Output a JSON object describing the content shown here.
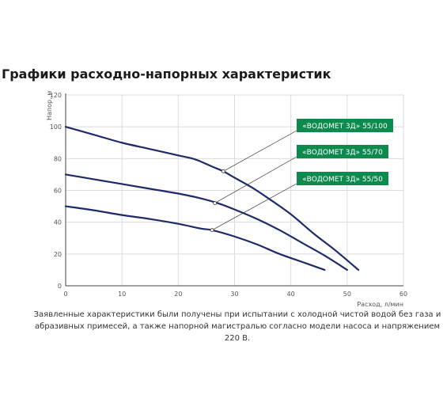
{
  "chart_data": {
    "type": "line",
    "title": "Графики расходно-напорных характеристик",
    "xlabel": "Расход, л/мин",
    "ylabel": "Напор, м",
    "xlim": [
      0,
      60
    ],
    "ylim": [
      0,
      120
    ],
    "xticks": [
      "0",
      "10",
      "20",
      "30",
      "40",
      "50",
      "60"
    ],
    "yticks": [
      "0",
      "20",
      "40",
      "60",
      "80",
      "100",
      "120"
    ],
    "grid": true,
    "line_color": "#1f2a6b",
    "label_color": "#0d8a4e",
    "series": [
      {
        "name": "«ВОДОМЕТ 3Д» 55/100",
        "x": [
          0,
          5,
          10,
          15,
          20,
          23,
          26,
          28,
          30,
          33,
          36,
          40,
          44,
          48,
          52
        ],
        "y": [
          100,
          95,
          90,
          86,
          82,
          79.5,
          75,
          72,
          68,
          62,
          55,
          45,
          33,
          22,
          10
        ],
        "marker": {
          "x": 28,
          "y": 72
        }
      },
      {
        "name": "«ВОДОМЕТ 3Д» 55/70",
        "x": [
          0,
          5,
          10,
          15,
          20,
          24,
          27,
          30,
          34,
          38,
          42,
          46,
          50
        ],
        "y": [
          70,
          67,
          64,
          61,
          58,
          55,
          52,
          48,
          42,
          35,
          27,
          19,
          10
        ],
        "marker": {
          "x": 26.5,
          "y": 52
        }
      },
      {
        "name": "«ВОДОМЕТ 3Д» 55/50",
        "x": [
          0,
          5,
          10,
          15,
          20,
          24,
          26,
          30,
          34,
          38,
          42,
          46
        ],
        "y": [
          50,
          47.5,
          44.5,
          42,
          39,
          36,
          35,
          31,
          26,
          20,
          15,
          10
        ],
        "marker": {
          "x": 26,
          "y": 35
        }
      }
    ]
  },
  "note": {
    "text": "Заявленные характеристики были получены при испытании с холодной чистой водой без газа и абразивных примесей, а также напорной магистралью согласно модели насоса и напряжением  220 В."
  }
}
